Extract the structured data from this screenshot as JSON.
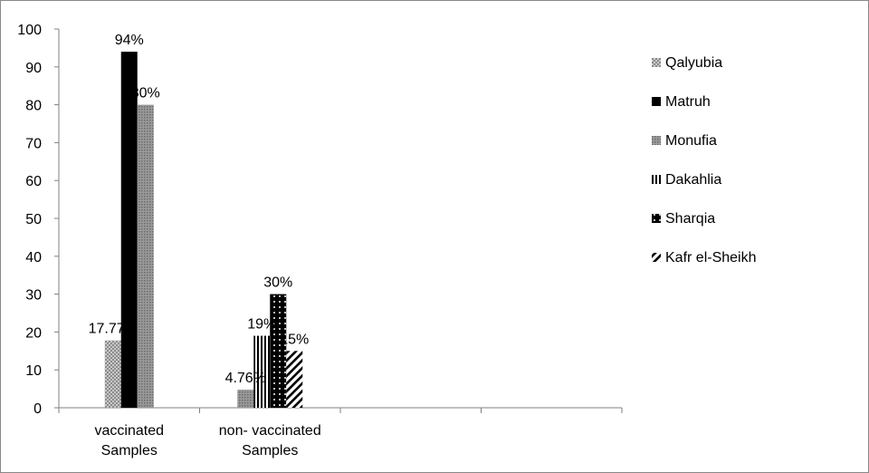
{
  "chart_data": {
    "type": "bar",
    "categories": [
      "vaccinated\nSamples",
      "non- vaccinated\nSamples",
      "",
      ""
    ],
    "ylim": [
      0,
      100
    ],
    "yticks": [
      0,
      10,
      20,
      30,
      40,
      50,
      60,
      70,
      80,
      90,
      100
    ],
    "grid": false,
    "legend_position": "right",
    "series": [
      {
        "name": "Qalyubia",
        "pattern": "dots-light",
        "color": "#b0b0b0",
        "values": [
          17.77,
          null,
          null,
          null
        ],
        "labels": [
          "17.77%",
          "",
          "",
          ""
        ]
      },
      {
        "name": "Matruh",
        "pattern": "solid",
        "color": "#000000",
        "values": [
          94,
          null,
          null,
          null
        ],
        "labels": [
          "94%",
          "",
          "",
          ""
        ]
      },
      {
        "name": "Monufia",
        "pattern": "dots-dense",
        "color": "#8a8a8a",
        "values": [
          80,
          4.76,
          null,
          null
        ],
        "labels": [
          "80%",
          "4.76%",
          "",
          ""
        ]
      },
      {
        "name": "Dakahlia",
        "pattern": "vertical-stripes",
        "color": "#000000",
        "values": [
          null,
          19,
          null,
          null
        ],
        "labels": [
          "",
          "19%",
          "",
          ""
        ]
      },
      {
        "name": "Sharqia",
        "pattern": "black-dotted",
        "color": "#000000",
        "values": [
          null,
          30,
          null,
          null
        ],
        "labels": [
          "",
          "30%",
          "",
          ""
        ]
      },
      {
        "name": "Kafr el-Sheikh",
        "pattern": "diagonal-stripes",
        "color": "#000000",
        "values": [
          null,
          15,
          null,
          null
        ],
        "labels": [
          "",
          "15%",
          "",
          ""
        ]
      }
    ]
  }
}
